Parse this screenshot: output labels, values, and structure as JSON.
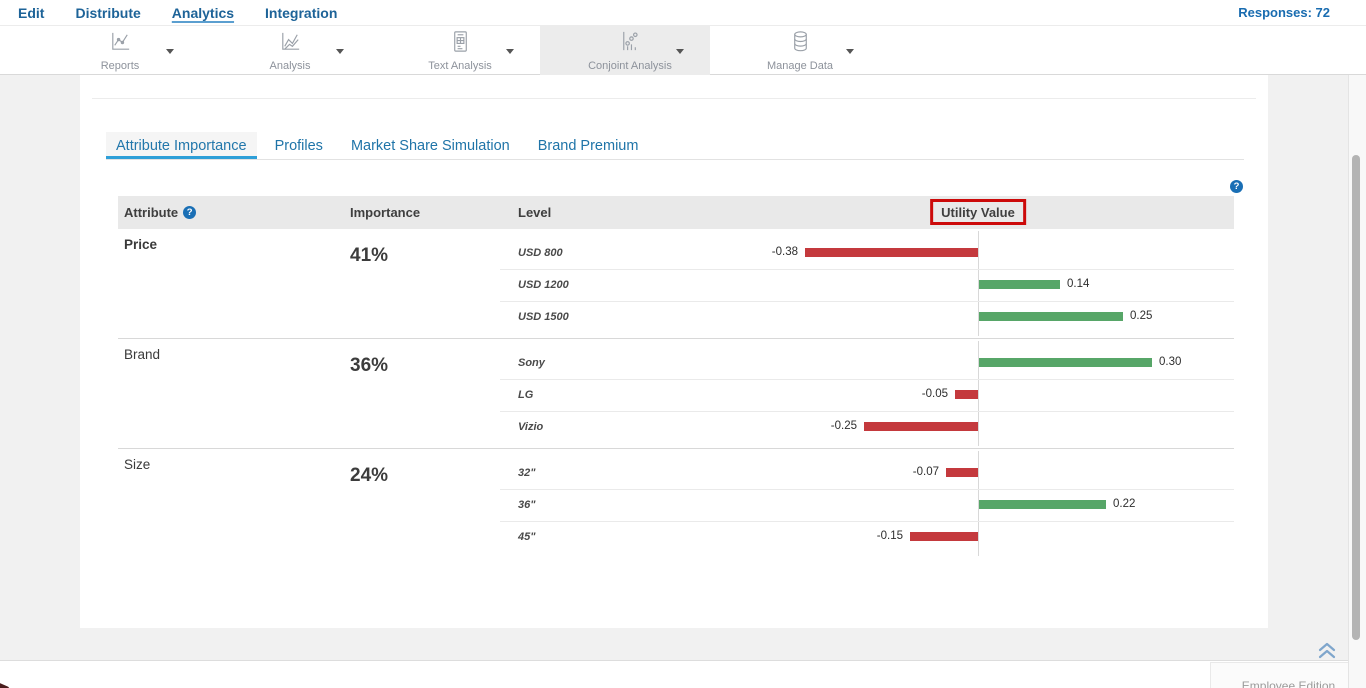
{
  "nav": {
    "items": [
      {
        "label": "Edit",
        "active": false
      },
      {
        "label": "Distribute",
        "active": false
      },
      {
        "label": "Analytics",
        "active": true
      },
      {
        "label": "Integration",
        "active": false
      }
    ],
    "responses": "Responses: 72"
  },
  "toolbar": {
    "items": [
      {
        "label": "Reports",
        "icon": "reports-line-chart-icon",
        "active": false
      },
      {
        "label": "Analysis",
        "icon": "analysis-trend-icon",
        "active": false
      },
      {
        "label": "Text Analysis",
        "icon": "text-analysis-document-icon",
        "active": false
      },
      {
        "label": "Conjoint Analysis",
        "icon": "conjoint-scatter-icon",
        "active": true
      },
      {
        "label": "Manage Data",
        "icon": "database-icon",
        "active": false
      }
    ]
  },
  "tabs": {
    "items": [
      {
        "label": "Attribute Importance",
        "active": true
      },
      {
        "label": "Profiles",
        "active": false
      },
      {
        "label": "Market Share Simulation",
        "active": false
      },
      {
        "label": "Brand Premium",
        "active": false
      }
    ]
  },
  "icons": {
    "help": "?"
  },
  "table": {
    "headers": {
      "attribute": "Attribute",
      "importance": "Importance",
      "level": "Level",
      "utility": "Utility Value"
    },
    "utility_highlight_color": "#cc0a0a",
    "bar_colors": {
      "positive": "#57a668",
      "negative": "#c4393d"
    },
    "groups": [
      {
        "attribute": "Price",
        "attribute_bold": true,
        "importance": "41%",
        "levels": [
          {
            "label": "USD 800",
            "value": -0.38
          },
          {
            "label": "USD 1200",
            "value": 0.14
          },
          {
            "label": "USD 1500",
            "value": 0.25
          }
        ]
      },
      {
        "attribute": "Brand",
        "attribute_bold": false,
        "importance": "36%",
        "levels": [
          {
            "label": "Sony",
            "value": 0.3
          },
          {
            "label": "LG",
            "value": -0.05
          },
          {
            "label": "Vizio",
            "value": -0.25
          }
        ]
      },
      {
        "attribute": "Size",
        "attribute_bold": false,
        "importance": "24%",
        "levels": [
          {
            "label": "32\"",
            "value": -0.07
          },
          {
            "label": "36\"",
            "value": 0.22
          },
          {
            "label": "45\"",
            "value": -0.15
          }
        ]
      }
    ]
  },
  "footer": {
    "edition": "Employee Edition"
  }
}
